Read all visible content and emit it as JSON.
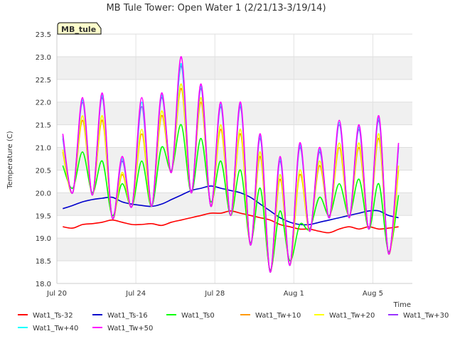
{
  "chart_data": {
    "type": "line",
    "title": "MB Tule Tower: Open Water 1 (2/21/13-3/19/14)",
    "xlabel": "Time",
    "ylabel": "Temperature (C)",
    "badge": "MB_tule",
    "x_range_days": [
      0,
      18
    ],
    "x_ticks": [
      {
        "day": 0,
        "label": "Jul 20"
      },
      {
        "day": 4,
        "label": "Jul 24"
      },
      {
        "day": 8,
        "label": "Jul 28"
      },
      {
        "day": 12,
        "label": "Aug 1"
      },
      {
        "day": 16,
        "label": "Aug 5"
      }
    ],
    "ylim": [
      18.0,
      23.5
    ],
    "y_ticks": [
      18.0,
      18.5,
      19.0,
      19.5,
      20.0,
      20.5,
      21.0,
      21.5,
      22.0,
      22.5,
      23.0,
      23.5
    ],
    "grid": true,
    "legend_position": "bottom",
    "x_days": [
      0.3,
      0.8,
      1.3,
      1.8,
      2.3,
      2.8,
      3.3,
      3.8,
      4.3,
      4.8,
      5.3,
      5.8,
      6.3,
      6.8,
      7.3,
      7.8,
      8.3,
      8.8,
      9.3,
      9.8,
      10.3,
      10.8,
      11.3,
      11.8,
      12.3,
      12.8,
      13.3,
      13.8,
      14.3,
      14.8,
      15.3,
      15.8,
      16.3,
      16.8,
      17.3
    ],
    "series": [
      {
        "name": "Wat1_Ts-32",
        "color": "#ff0000",
        "values": [
          19.25,
          19.22,
          19.3,
          19.32,
          19.35,
          19.4,
          19.35,
          19.3,
          19.3,
          19.32,
          19.28,
          19.35,
          19.4,
          19.45,
          19.5,
          19.55,
          19.55,
          19.6,
          19.55,
          19.5,
          19.45,
          19.4,
          19.3,
          19.25,
          19.2,
          19.2,
          19.15,
          19.12,
          19.2,
          19.25,
          19.2,
          19.25,
          19.2,
          19.22,
          19.25
        ]
      },
      {
        "name": "Wat1_Ts-16",
        "color": "#0000cc",
        "values": [
          19.65,
          19.72,
          19.8,
          19.85,
          19.88,
          19.9,
          19.8,
          19.75,
          19.72,
          19.7,
          19.75,
          19.85,
          19.95,
          20.05,
          20.1,
          20.15,
          20.1,
          20.05,
          20.0,
          19.9,
          19.75,
          19.6,
          19.45,
          19.35,
          19.3,
          19.3,
          19.35,
          19.4,
          19.45,
          19.5,
          19.55,
          19.6,
          19.6,
          19.5,
          19.45
        ]
      },
      {
        "name": "Wat1_Ts0",
        "color": "#00ff00",
        "values": [
          20.6,
          20.1,
          20.9,
          20.0,
          20.7,
          19.5,
          20.2,
          19.7,
          20.7,
          19.7,
          21.0,
          20.5,
          21.5,
          20.0,
          21.2,
          19.8,
          20.7,
          19.5,
          20.5,
          18.9,
          20.1,
          18.3,
          19.6,
          18.5,
          19.3,
          19.2,
          19.9,
          19.5,
          20.2,
          19.5,
          20.3,
          19.2,
          20.2,
          18.7,
          19.95
        ]
      },
      {
        "name": "Wat1_Tw+10",
        "color": "#ff9900",
        "values": [
          20.9,
          20.0,
          21.6,
          19.95,
          21.6,
          19.45,
          20.4,
          19.7,
          21.3,
          19.7,
          21.7,
          20.45,
          22.3,
          20.0,
          22.0,
          19.7,
          21.4,
          19.5,
          21.3,
          18.85,
          20.8,
          18.25,
          20.3,
          18.4,
          20.4,
          19.15,
          20.6,
          19.45,
          21.0,
          19.45,
          21.0,
          19.2,
          21.2,
          18.65,
          20.5
        ]
      },
      {
        "name": "Wat1_Tw+20",
        "color": "#ffff00",
        "values": [
          20.95,
          20.0,
          21.7,
          19.95,
          21.7,
          19.45,
          20.45,
          19.7,
          21.4,
          19.7,
          21.8,
          20.45,
          22.4,
          20.0,
          22.1,
          19.7,
          21.5,
          19.5,
          21.4,
          18.85,
          20.9,
          18.25,
          20.4,
          18.4,
          20.5,
          19.15,
          20.7,
          19.45,
          21.1,
          19.45,
          21.1,
          19.2,
          21.3,
          18.65,
          20.6
        ]
      },
      {
        "name": "Wat1_Tw+30",
        "color": "#9933ff",
        "values": [
          21.2,
          20.0,
          22.0,
          19.95,
          22.1,
          19.45,
          20.7,
          19.7,
          21.9,
          19.7,
          22.1,
          20.45,
          22.8,
          20.0,
          22.3,
          19.7,
          21.9,
          19.5,
          21.9,
          18.85,
          21.2,
          18.25,
          20.7,
          18.4,
          21.0,
          19.15,
          20.9,
          19.45,
          21.5,
          19.45,
          21.4,
          19.2,
          21.6,
          18.65,
          21.0
        ]
      },
      {
        "name": "Wat1_Tw+40",
        "color": "#00ffff",
        "values": [
          21.25,
          20.0,
          22.05,
          19.95,
          22.15,
          19.45,
          20.75,
          19.7,
          22.0,
          19.7,
          22.15,
          20.45,
          22.85,
          20.0,
          22.35,
          19.7,
          21.95,
          19.5,
          21.95,
          18.85,
          21.25,
          18.25,
          20.75,
          18.4,
          21.05,
          19.15,
          20.95,
          19.45,
          21.55,
          19.45,
          21.45,
          19.2,
          21.65,
          18.65,
          21.05
        ]
      },
      {
        "name": "Wat1_Tw+50",
        "color": "#ff00ff",
        "values": [
          21.3,
          20.0,
          22.1,
          19.95,
          22.2,
          19.45,
          20.8,
          19.7,
          22.1,
          19.7,
          22.2,
          20.45,
          23.0,
          20.0,
          22.4,
          19.7,
          22.0,
          19.5,
          22.0,
          18.85,
          21.3,
          18.25,
          20.8,
          18.4,
          21.1,
          19.15,
          21.0,
          19.45,
          21.6,
          19.45,
          21.5,
          19.2,
          21.7,
          18.65,
          21.1
        ]
      }
    ]
  }
}
